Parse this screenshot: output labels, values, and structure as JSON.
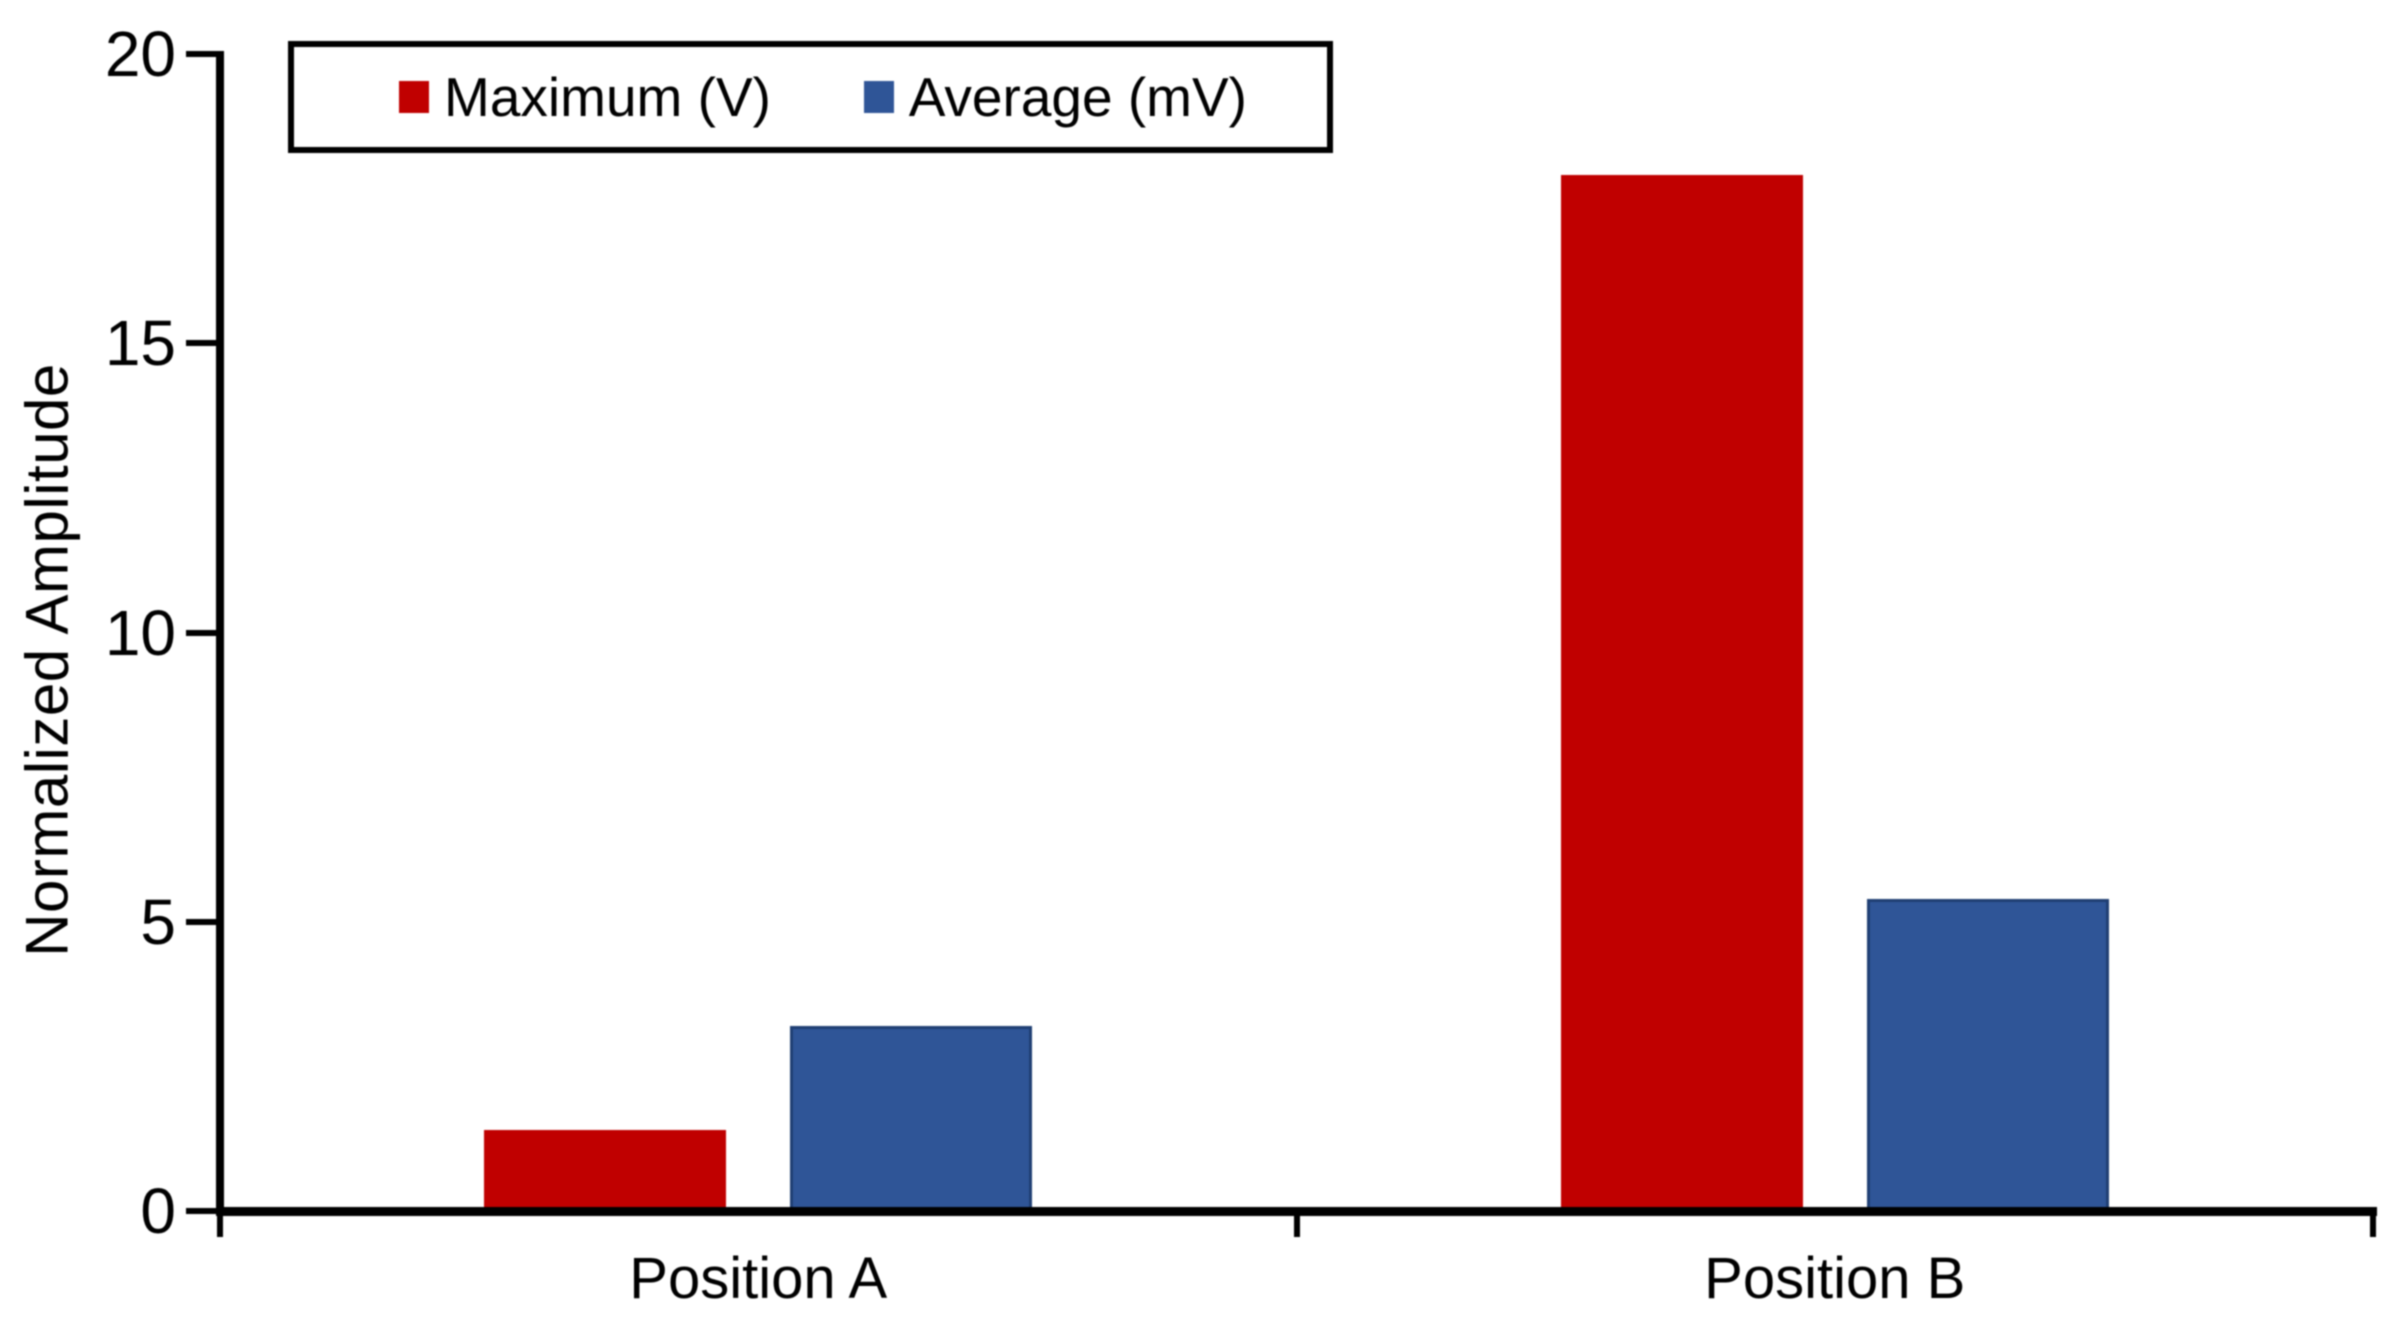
{
  "figure": {
    "background_color": "#ffffff",
    "text_color": "#000000",
    "axis_color": "#000000"
  },
  "chart_data": {
    "type": "bar",
    "title": "",
    "xlabel": "",
    "ylabel": "Normalized Amplitude",
    "categories": [
      "Position A",
      "Position B"
    ],
    "series": [
      {
        "name": "Maximum (V)",
        "color": "#c00000",
        "edge_color": "#c00000",
        "values": [
          1.4,
          17.9
        ]
      },
      {
        "name": "Average (mV)",
        "color": "#2f5597",
        "edge_color": "#1f3f73",
        "values": [
          3.2,
          5.4
        ]
      }
    ],
    "ylim": [
      0,
      20
    ],
    "yticks": [
      0,
      5,
      10,
      15,
      20
    ],
    "grid": false,
    "legend_position": "top-left"
  }
}
